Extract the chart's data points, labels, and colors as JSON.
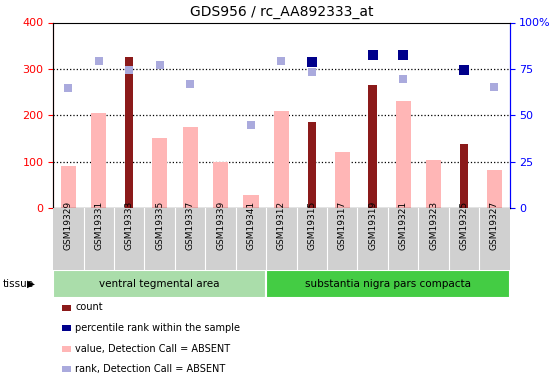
{
  "title": "GDS956 / rc_AA892333_at",
  "samples": [
    "GSM19329",
    "GSM19331",
    "GSM19333",
    "GSM19335",
    "GSM19337",
    "GSM19339",
    "GSM19341",
    "GSM19312",
    "GSM19315",
    "GSM19317",
    "GSM19319",
    "GSM19321",
    "GSM19323",
    "GSM19325",
    "GSM19327"
  ],
  "count_values": [
    null,
    null,
    325,
    null,
    null,
    null,
    null,
    null,
    185,
    null,
    265,
    null,
    null,
    138,
    null
  ],
  "rank_values": [
    null,
    null,
    null,
    null,
    null,
    null,
    null,
    null,
    315,
    null,
    330,
    330,
    null,
    298,
    null
  ],
  "absent_value_bars": [
    90,
    205,
    null,
    152,
    175,
    100,
    28,
    210,
    null,
    122,
    null,
    230,
    103,
    null,
    82
  ],
  "absent_rank_dots": [
    258,
    318,
    298,
    308,
    267,
    null,
    180,
    318,
    293,
    null,
    null,
    278,
    null,
    null,
    260
  ],
  "group1_label": "ventral tegmental area",
  "group1_count": 7,
  "group2_label": "substantia nigra pars compacta",
  "group2_count": 8,
  "ylim_left": [
    0,
    400
  ],
  "ylim_right": [
    0,
    100
  ],
  "yticks_left": [
    0,
    100,
    200,
    300,
    400
  ],
  "yticks_right": [
    0,
    25,
    50,
    75,
    100
  ],
  "ytick_labels_right": [
    "0",
    "25",
    "50",
    "75",
    "100%"
  ],
  "bar_color_count": "#8B1A1A",
  "bar_color_absent": "#FFB6B6",
  "dot_color_rank": "#00008B",
  "dot_color_absent_rank": "#AAAADD",
  "group_color1": "#AADDAA",
  "group_color2": "#44CC44",
  "tick_bg_color": "#D0D0D0",
  "legend_items": [
    {
      "label": "count",
      "color": "#8B1A1A"
    },
    {
      "label": "percentile rank within the sample",
      "color": "#00008B"
    },
    {
      "label": "value, Detection Call = ABSENT",
      "color": "#FFB6B6"
    },
    {
      "label": "rank, Detection Call = ABSENT",
      "color": "#AAAADD"
    }
  ]
}
